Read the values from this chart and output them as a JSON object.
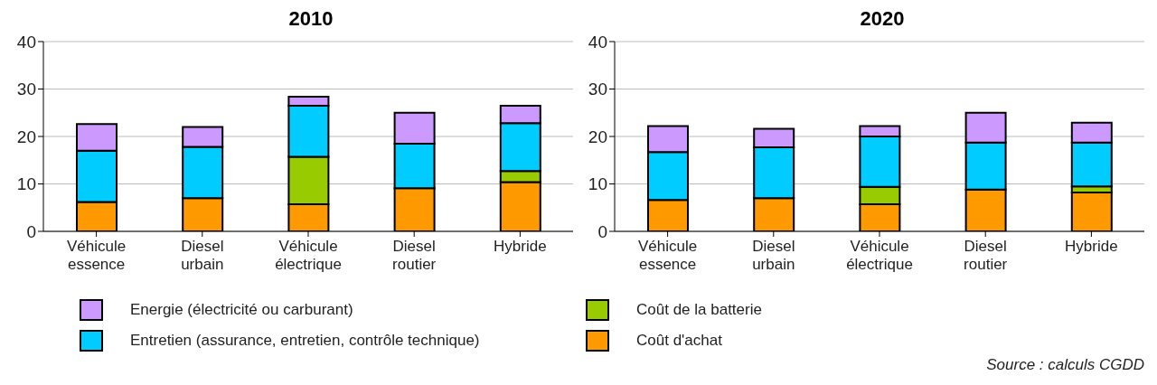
{
  "chart_data": [
    {
      "type": "bar",
      "title": "2010",
      "stacked": true,
      "categories": [
        "Véhicule essence",
        "Diesel urbain",
        "Véhicule électrique",
        "Diesel routier",
        "Hybride"
      ],
      "ylim": [
        0,
        40
      ],
      "yticks": [
        0,
        10,
        20,
        30,
        40
      ],
      "grid": "y",
      "legend": "bottom",
      "series": [
        {
          "name": "Coût d'achat",
          "color": "#ff9900",
          "values": [
            6.2,
            7.0,
            5.7,
            9.1,
            10.4
          ]
        },
        {
          "name": "Coût de la batterie",
          "color": "#99cc00",
          "values": [
            0,
            0,
            10.0,
            0,
            2.3
          ]
        },
        {
          "name": "Entretien (assurance, entretien, contrôle technique)",
          "color": "#00ccff",
          "values": [
            10.8,
            10.8,
            10.8,
            9.4,
            10.1
          ]
        },
        {
          "name": "Energie (électricité ou carburant)",
          "color": "#cc99ff",
          "values": [
            5.6,
            4.2,
            1.9,
            6.5,
            3.7
          ]
        }
      ]
    },
    {
      "type": "bar",
      "title": "2020",
      "stacked": true,
      "categories": [
        "Véhicule essence",
        "Diesel urbain",
        "Véhicule électrique",
        "Diesel routier",
        "Hybride"
      ],
      "ylim": [
        0,
        40
      ],
      "yticks": [
        0,
        10,
        20,
        30,
        40
      ],
      "grid": "y",
      "annotations": [
        "Source : calculs CGDD"
      ],
      "series": [
        {
          "color": "#ff9900",
          "values": [
            6.6,
            7.0,
            5.7,
            8.8,
            8.2
          ]
        },
        {
          "color": "#99cc00",
          "values": [
            0,
            0,
            3.7,
            0,
            1.3
          ]
        },
        {
          "color": "#00ccff",
          "values": [
            10.1,
            10.7,
            10.6,
            9.9,
            9.2
          ]
        },
        {
          "color": "#cc99ff",
          "values": [
            5.5,
            3.9,
            2.2,
            6.3,
            4.2
          ]
        }
      ]
    }
  ]
}
